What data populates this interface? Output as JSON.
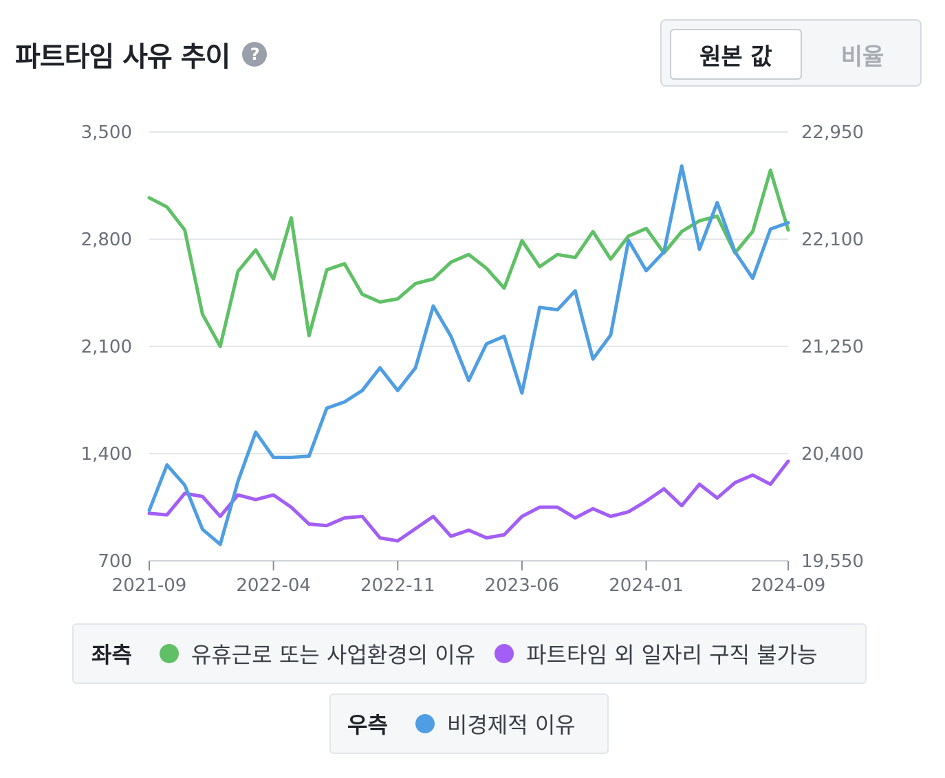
{
  "header": {
    "title": "파트타임 사유 추이",
    "help_icon": "?"
  },
  "toggle": {
    "options": [
      "원본 값",
      "비율"
    ],
    "selected": "원본 값"
  },
  "legend": {
    "left_label": "좌측",
    "right_label": "우측",
    "left_items": [
      {
        "name": "유휴근로 또는 사업환경의 이유",
        "color": "#5fc066"
      },
      {
        "name": "파트타임 외 일자리 구직 불가능",
        "color": "#a35ef5"
      }
    ],
    "right_items": [
      {
        "name": "비경제적 이유",
        "color": "#4f9ee3"
      }
    ]
  },
  "chart_data": {
    "type": "line",
    "x_tick_labels": [
      "2021-09",
      "2022-04",
      "2022-11",
      "2023-06",
      "2024-01",
      "2024-09"
    ],
    "x_tick_index": [
      0,
      7,
      14,
      21,
      28,
      36
    ],
    "left_axis": {
      "ylim": [
        700,
        3500
      ],
      "ticks": [
        "700",
        "1,400",
        "2,100",
        "2,800",
        "3,500"
      ]
    },
    "right_axis": {
      "ylim": [
        19550,
        22950
      ],
      "ticks": [
        "19,550",
        "20,400",
        "21,250",
        "22,100",
        "22,950"
      ]
    },
    "grid": true,
    "series": [
      {
        "name": "유휴근로 또는 사업환경의 이유",
        "axis": "left",
        "color": "#5fc066",
        "values": [
          3070,
          3010,
          2860,
          2310,
          2100,
          2590,
          2730,
          2540,
          2940,
          2170,
          2600,
          2640,
          2440,
          2390,
          2410,
          2510,
          2540,
          2650,
          2700,
          2610,
          2480,
          2790,
          2620,
          2700,
          2680,
          2850,
          2670,
          2820,
          2870,
          2710,
          2850,
          2920,
          2950,
          2710,
          2850,
          3250,
          2860
        ]
      },
      {
        "name": "파트타임 외 일자리 구직 불가능",
        "axis": "left",
        "color": "#a35ef5",
        "values": [
          1010,
          1000,
          1140,
          1120,
          990,
          1130,
          1100,
          1130,
          1050,
          940,
          930,
          980,
          990,
          850,
          830,
          910,
          990,
          860,
          900,
          850,
          870,
          990,
          1050,
          1050,
          980,
          1040,
          990,
          1020,
          1090,
          1170,
          1060,
          1200,
          1110,
          1210,
          1260,
          1200,
          1350
        ]
      },
      {
        "name": "비경제적 이유",
        "axis": "right",
        "color": "#4f9ee3",
        "values": [
          19950,
          20310,
          20150,
          19800,
          19680,
          20180,
          20570,
          20370,
          20370,
          20380,
          20760,
          20810,
          20900,
          21080,
          20900,
          21080,
          21570,
          21330,
          20980,
          21270,
          21330,
          20880,
          21560,
          21540,
          21690,
          21150,
          21340,
          22090,
          21850,
          22000,
          22680,
          22020,
          22390,
          22000,
          21790,
          22180,
          22230
        ]
      }
    ]
  }
}
